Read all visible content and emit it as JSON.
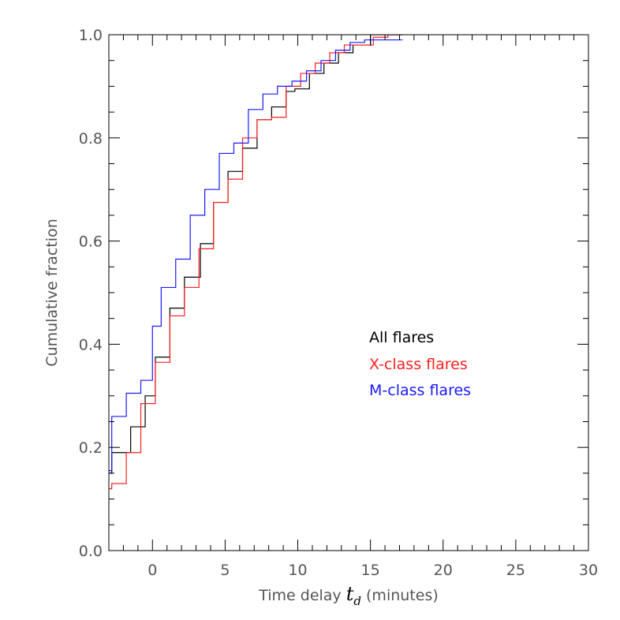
{
  "chart_data": {
    "type": "line",
    "step": true,
    "xlabel_prefix": "Time delay ",
    "xlabel_symbol": "t",
    "xlabel_subscript": "d",
    "xlabel_suffix": " (minutes)",
    "ylabel": "Cumulative fraction",
    "xlim": [
      -3,
      30
    ],
    "ylim": [
      0,
      1
    ],
    "x_ticks": [
      "0",
      "5",
      "10",
      "15",
      "20",
      "25",
      "30"
    ],
    "y_ticks": [
      "0.0",
      "0.2",
      "0.4",
      "0.6",
      "0.8",
      "1.0"
    ],
    "grid": false,
    "legend_position": "center-right",
    "series": [
      {
        "name": "All flares",
        "color": "#000000",
        "x": [
          -3,
          -2.8,
          -2.5,
          -1.5,
          -0.5,
          0.2,
          1.2,
          2.2,
          2.8,
          3.3,
          4.2,
          5.2,
          5.8,
          6.2,
          7.2,
          7.8,
          8.2,
          8.8,
          9.2,
          9.8,
          10.8,
          11.8,
          12.2,
          12.8,
          13.8,
          15,
          17.2
        ],
        "y": [
          0.15,
          0.19,
          0.19,
          0.24,
          0.3,
          0.375,
          0.47,
          0.53,
          0.53,
          0.595,
          0.675,
          0.735,
          0.735,
          0.78,
          0.835,
          0.835,
          0.86,
          0.86,
          0.89,
          0.895,
          0.925,
          0.945,
          0.945,
          0.965,
          0.98,
          1.0,
          1.0
        ]
      },
      {
        "name": "X-class flares",
        "color": "#ff2020",
        "x": [
          -3,
          -2.8,
          -1.8,
          -0.8,
          0.2,
          1.2,
          2.2,
          3.2,
          4.2,
          5.2,
          6.2,
          7.2,
          8.2,
          9.2,
          10.2,
          11.2,
          12.2,
          13.2,
          14.2,
          15.2,
          16.2,
          17.2
        ],
        "y": [
          0.12,
          0.13,
          0.19,
          0.285,
          0.365,
          0.455,
          0.51,
          0.585,
          0.675,
          0.72,
          0.8,
          0.835,
          0.84,
          0.9,
          0.925,
          0.945,
          0.965,
          0.98,
          0.98,
          0.995,
          1.0,
          1.0
        ]
      },
      {
        "name": "M-class flares",
        "color": "#1a1aff",
        "x": [
          -3,
          -2.8,
          -1.8,
          -0.8,
          0.0,
          0.6,
          1.6,
          2.6,
          3.6,
          4.6,
          5.6,
          6.6,
          7.6,
          8.6,
          9.6,
          10.6,
          11.6,
          12.6,
          13.6,
          14.6,
          15.6,
          16.6,
          17.2
        ],
        "y": [
          0.155,
          0.26,
          0.305,
          0.33,
          0.435,
          0.51,
          0.565,
          0.65,
          0.7,
          0.77,
          0.79,
          0.855,
          0.885,
          0.9,
          0.91,
          0.93,
          0.95,
          0.97,
          0.985,
          0.99,
          0.99,
          0.99,
          0.99
        ]
      }
    ]
  }
}
